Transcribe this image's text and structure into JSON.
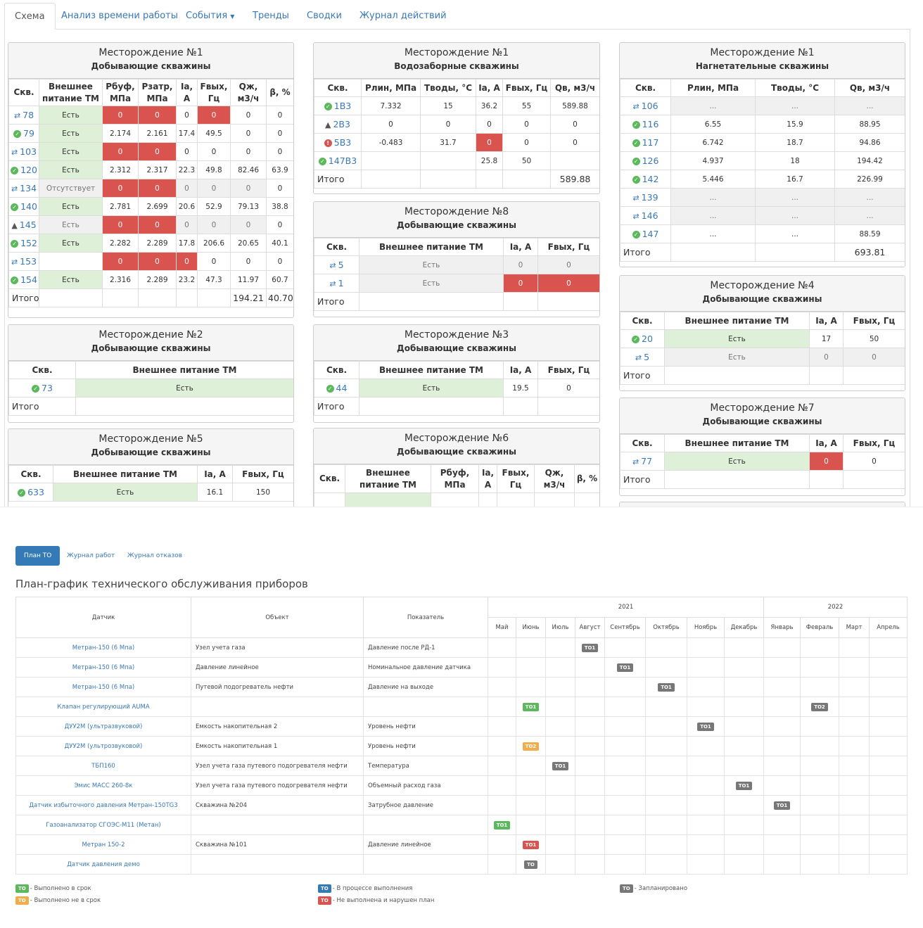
{
  "tabs": [
    "Схема",
    "Анализ времени работы",
    "События",
    "Тренды",
    "Сводки",
    "Журнал действий"
  ],
  "panels": {
    "p1": {
      "title": "Месторождение №1",
      "subtitle": "Добывающие скважины",
      "headers": [
        "Скв.",
        "Внешнее питание ТМ",
        "Рбуф, МПа",
        "Рзатр, МПа",
        "Ia, А",
        "Fвых, Гц",
        "Qж, м3/ч",
        "β, %"
      ],
      "rows": [
        [
          "78",
          "Есть",
          "0",
          "0",
          "0",
          "0",
          "0",
          "0"
        ],
        [
          "79",
          "Есть",
          "2.174",
          "2.161",
          "17.4",
          "49.5",
          "0",
          "0"
        ],
        [
          "103",
          "Есть",
          "0",
          "0",
          "0",
          "0",
          "0",
          "0"
        ],
        [
          "120",
          "Есть",
          "2.312",
          "2.317",
          "22.3",
          "49.8",
          "82.46",
          "63.9"
        ],
        [
          "134",
          "Отсутствует",
          "0",
          "0",
          "0",
          "0",
          "0",
          "0"
        ],
        [
          "140",
          "Есть",
          "2.781",
          "2.699",
          "20.6",
          "52.9",
          "79.13",
          "38.8"
        ],
        [
          "145",
          "Есть",
          "0",
          "0",
          "0",
          "0",
          "0",
          "0"
        ],
        [
          "152",
          "Есть",
          "2.282",
          "2.289",
          "17.8",
          "206.6",
          "20.65",
          "40.1"
        ],
        [
          "153",
          "",
          "0",
          "0",
          "0",
          "0",
          "0",
          "0"
        ],
        [
          "154",
          "Есть",
          "2.316",
          "2.289",
          "23.2",
          "47.3",
          "11.97",
          "60.7"
        ]
      ],
      "total_label": "Итого",
      "total_q": "194.21",
      "total_b": "40.70"
    },
    "p2": {
      "title": "Месторождение №1",
      "subtitle": "Водозаборные скважины",
      "headers": [
        "Скв.",
        "Рлин, МПа",
        "Тводы, °С",
        "Ia, А",
        "Fвых, Гц",
        "Qв, м3/ч"
      ],
      "rows": [
        [
          "1В3",
          "7.332",
          "15",
          "36.2",
          "55",
          "589.88"
        ],
        [
          "2В3",
          "0",
          "0",
          "0",
          "0",
          "0"
        ],
        [
          "5В3",
          "-0.483",
          "31.7",
          "0",
          "0",
          "0"
        ],
        [
          "147В3",
          "",
          "",
          "25.8",
          "50",
          ""
        ]
      ],
      "total_label": "Итого",
      "total_q": "589.88"
    },
    "p3": {
      "title": "Месторождение №1",
      "subtitle": "Нагнетательные скважины",
      "headers": [
        "Скв.",
        "Рлин, МПа",
        "Тводы, °С",
        "Qв, м3/ч"
      ],
      "rows": [
        [
          "106",
          "...",
          "...",
          "..."
        ],
        [
          "116",
          "6.55",
          "15.9",
          "88.95"
        ],
        [
          "117",
          "6.742",
          "18.7",
          "94.86"
        ],
        [
          "126",
          "4.937",
          "18",
          "194.42"
        ],
        [
          "142",
          "5.446",
          "16.7",
          "226.99"
        ],
        [
          "139",
          "...",
          "...",
          "..."
        ],
        [
          "146",
          "...",
          "...",
          "..."
        ],
        [
          "147",
          "...",
          "...",
          "88.59"
        ]
      ],
      "total_label": "Итого",
      "total_q": "693.81"
    },
    "p4": {
      "title": "Месторождение №2",
      "subtitle": "Добывающие скважины",
      "headers": [
        "Скв.",
        "Внешнее питание ТМ"
      ],
      "rows": [
        [
          "73",
          "Есть"
        ]
      ],
      "total_label": "Итого"
    },
    "p5": {
      "title": "Месторождение №8",
      "subtitle": "Добывающие скважины",
      "headers": [
        "Скв.",
        "Внешнее питание ТМ",
        "Ia, А",
        "Fвых, Гц"
      ],
      "rows": [
        [
          "5",
          "Есть",
          "0",
          "0"
        ],
        [
          "1",
          "Есть",
          "0",
          "0"
        ]
      ],
      "total_label": "Итого"
    },
    "p6": {
      "title": "Месторождение №4",
      "subtitle": "Добывающие скважины",
      "headers": [
        "Скв.",
        "Внешнее питание ТМ",
        "Ia, А",
        "Fвых, Гц"
      ],
      "rows": [
        [
          "20",
          "Есть",
          "17",
          "50"
        ],
        [
          "5",
          "Есть",
          "0",
          "0"
        ]
      ],
      "total_label": "Итого"
    },
    "p7": {
      "title": "Месторождение №3",
      "subtitle": "Добывающие скважины",
      "headers": [
        "Скв.",
        "Внешнее питание ТМ",
        "Ia, А",
        "Fвых, Гц"
      ],
      "rows": [
        [
          "44",
          "Есть",
          "19.5",
          "0"
        ]
      ],
      "total_label": "Итого"
    },
    "p8": {
      "title": "Месторождение №7",
      "subtitle": "Добывающие скважины",
      "headers": [
        "Скв.",
        "Внешнее питание ТМ",
        "Ia, А",
        "Fвых, Гц"
      ],
      "rows": [
        [
          "77",
          "Есть",
          "0",
          "0"
        ]
      ],
      "total_label": "Итого"
    },
    "p9": {
      "title": "Месторождение №5",
      "subtitle": "Добывающие скважины",
      "headers": [
        "Скв.",
        "Внешнее питание ТМ",
        "Ia, А",
        "Fвых, Гц"
      ],
      "rows": [
        [
          "633",
          "Есть",
          "16.1",
          "150"
        ]
      ]
    },
    "p10": {
      "title": "Месторождение №6",
      "subtitle": "Добывающие скважины",
      "headers": [
        "Скв.",
        "Внешнее питание ТМ",
        "Рбуф, МПа",
        "Ia, А",
        "Fвых, Гц",
        "Qж, м3/ч",
        "β, %"
      ]
    }
  },
  "maint": {
    "pills": [
      "План ТО",
      "Журнал работ",
      "Журнал отказов"
    ],
    "title": "План-график технического обслуживания приборов",
    "col_sensor": "Датчик",
    "col_object": "Объект",
    "col_param": "Показатель",
    "year1": "2021",
    "year2": "2022",
    "months": [
      "Май",
      "Июнь",
      "Июль",
      "Август",
      "Сентябрь",
      "Октябрь",
      "Ноябрь",
      "Декабрь",
      "Январь",
      "Февраль",
      "Март",
      "Апрель"
    ],
    "rows": [
      {
        "sensor": "Метран-150 (6 Мпа)",
        "object": "Узел учета газа",
        "param": "Давление после РД-1",
        "badge": "ТО1",
        "month": 3,
        "color": "#777"
      },
      {
        "sensor": "Метран-150 (6 Мпа)",
        "object": "Давление линейное",
        "param": "Номинальное давление датчика",
        "badge": "ТО1",
        "month": 4,
        "color": "#777"
      },
      {
        "sensor": "Метран-150 (6 Мпа)",
        "object": "Путевой подогреватель нефти",
        "param": "Давление на выходе",
        "badge": "ТО1",
        "month": 5,
        "color": "#777"
      },
      {
        "sensor": "Клапан регулирующий AUMA",
        "object": "",
        "param": "",
        "badge": "ТО1",
        "month": 1,
        "color": "#5cb85c",
        "badge2": "ТО2",
        "month2": 9,
        "color2": "#777"
      },
      {
        "sensor": "ДУУ2М (ультразвуковой)",
        "object": "Емкость накопительная 2",
        "param": "Уровень нефти",
        "badge": "ТО1",
        "month": 6,
        "color": "#777"
      },
      {
        "sensor": "ДУУ2М (ультрозвуковой)",
        "object": "Емкость накопительная 1",
        "param": "Уровень нефти",
        "badge": "ТО2",
        "month": 1,
        "color": "#f0ad4e"
      },
      {
        "sensor": "ТБП160",
        "object": "Узел учета газа путевого подогревателя нефти",
        "param": "Температура",
        "badge": "ТО1",
        "month": 2,
        "color": "#777"
      },
      {
        "sensor": "Эмис МАСС 260-8к",
        "object": "Узел учета газа путевого подогревателя нефти",
        "param": "Объемный расход газа",
        "badge": "ТО1",
        "month": 7,
        "color": "#777"
      },
      {
        "sensor": "Датчик избыточного давления Метран-150TG3",
        "object": "Скважина №204",
        "param": "Затрубное давление",
        "badge": "ТО1",
        "month": 8,
        "color": "#777"
      },
      {
        "sensor": "Газоанализатор СГОЭС-М11 (Метан)",
        "object": "",
        "param": "",
        "badge": "ТО1",
        "month": 0,
        "color": "#5cb85c"
      },
      {
        "sensor": "Метран 150-2",
        "object": "Скважина №101",
        "param": "Давление линейное",
        "badge": "ТО1",
        "month": 1,
        "color": "#d9534f"
      },
      {
        "sensor": "Датчик давления демо",
        "object": "",
        "param": "",
        "badge": "ТО",
        "month": 1,
        "color": "#777"
      }
    ],
    "legend": [
      {
        "badge": "ТО",
        "text": "- Выполнено в срок",
        "color": "#5cb85c"
      },
      {
        "badge": "ТО",
        "text": "- Выполнено не в срок",
        "color": "#f0ad4e"
      },
      {
        "badge": "ТО",
        "text": "- В процессе выполнения",
        "color": "#337ab7"
      },
      {
        "badge": "ТО",
        "text": "- Не выполнена и нарушен план",
        "color": "#d9534f"
      },
      {
        "badge": "ТО",
        "text": "- Запланировано",
        "color": "#777"
      }
    ]
  }
}
